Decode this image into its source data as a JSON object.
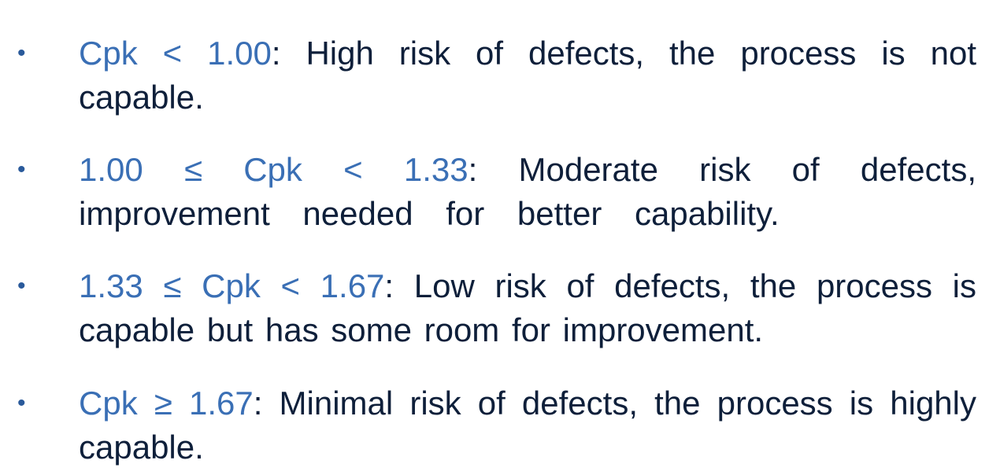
{
  "items": [
    {
      "bullet": "•",
      "term": "Cpk < 1.00",
      "text": ": High risk of defects, the process is not capable."
    },
    {
      "bullet": "•",
      "term": "1.00 ≤ Cpk < 1.33",
      "text": ": Moderate risk of defects, improvement needed for better capability."
    },
    {
      "bullet": "•",
      "term": "1.33 ≤ Cpk < 1.67",
      "text": ": Low risk of defects, the process is capable but has some room for improvement."
    },
    {
      "bullet": "•",
      "term": "Cpk ≥ 1.67",
      "text": ": Minimal risk of defects, the process is highly capable."
    }
  ],
  "colors": {
    "term": "#3a6fb5",
    "body_text": "#0e1f3a",
    "bullet": "#2a5a9b"
  }
}
